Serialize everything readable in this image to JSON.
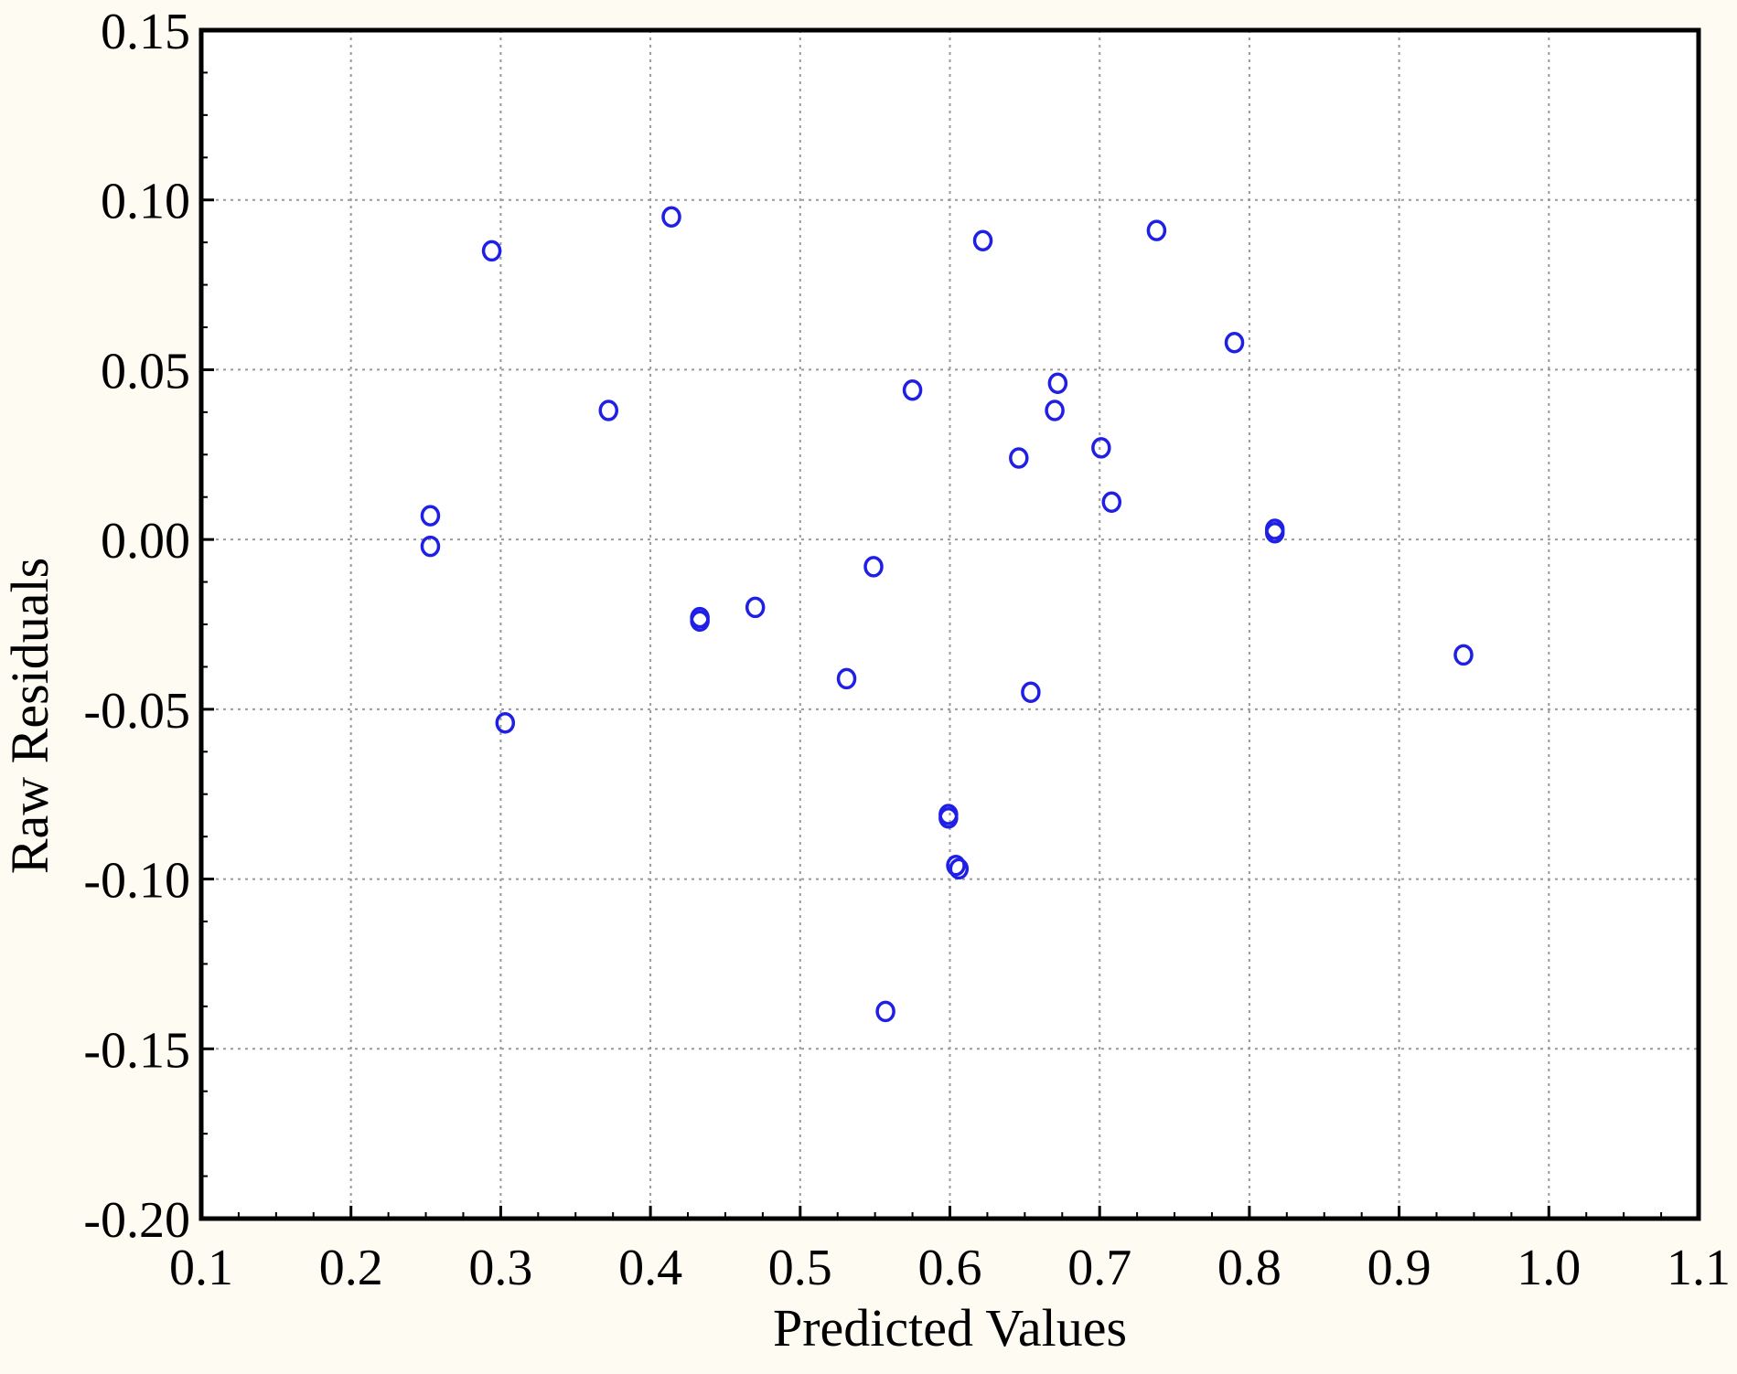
{
  "chart_data": {
    "type": "scatter",
    "title": "",
    "xlabel": "Predicted Values",
    "ylabel": "Raw Residuals",
    "xlim": [
      0.1,
      1.1
    ],
    "ylim": [
      -0.2,
      0.15
    ],
    "x_ticks": [
      "0.1",
      "0.2",
      "0.3",
      "0.4",
      "0.5",
      "0.6",
      "0.7",
      "0.8",
      "0.9",
      "1.0",
      "1.1"
    ],
    "y_ticks": [
      "0.15",
      "0.10",
      "0.05",
      "0.00",
      "-0.05",
      "-0.10",
      "-0.15",
      "-0.20"
    ],
    "grid": true,
    "marker": "circle-open",
    "marker_color": "#1f1fe6",
    "series": [
      {
        "points": [
          {
            "x": 0.253,
            "y": 0.007
          },
          {
            "x": 0.253,
            "y": -0.002
          },
          {
            "x": 0.294,
            "y": 0.085
          },
          {
            "x": 0.303,
            "y": -0.054
          },
          {
            "x": 0.372,
            "y": 0.038
          },
          {
            "x": 0.414,
            "y": 0.095
          },
          {
            "x": 0.433,
            "y": -0.023
          },
          {
            "x": 0.433,
            "y": -0.024
          },
          {
            "x": 0.47,
            "y": -0.02
          },
          {
            "x": 0.531,
            "y": -0.041
          },
          {
            "x": 0.549,
            "y": -0.008
          },
          {
            "x": 0.557,
            "y": -0.139
          },
          {
            "x": 0.575,
            "y": 0.044
          },
          {
            "x": 0.599,
            "y": -0.081
          },
          {
            "x": 0.599,
            "y": -0.082
          },
          {
            "x": 0.604,
            "y": -0.096
          },
          {
            "x": 0.606,
            "y": -0.097
          },
          {
            "x": 0.622,
            "y": 0.088
          },
          {
            "x": 0.646,
            "y": 0.024
          },
          {
            "x": 0.654,
            "y": -0.045
          },
          {
            "x": 0.67,
            "y": 0.038
          },
          {
            "x": 0.672,
            "y": 0.046
          },
          {
            "x": 0.701,
            "y": 0.027
          },
          {
            "x": 0.708,
            "y": 0.011
          },
          {
            "x": 0.738,
            "y": 0.091
          },
          {
            "x": 0.79,
            "y": 0.058
          },
          {
            "x": 0.817,
            "y": 0.003
          },
          {
            "x": 0.817,
            "y": 0.002
          },
          {
            "x": 0.943,
            "y": -0.034
          }
        ]
      }
    ]
  }
}
